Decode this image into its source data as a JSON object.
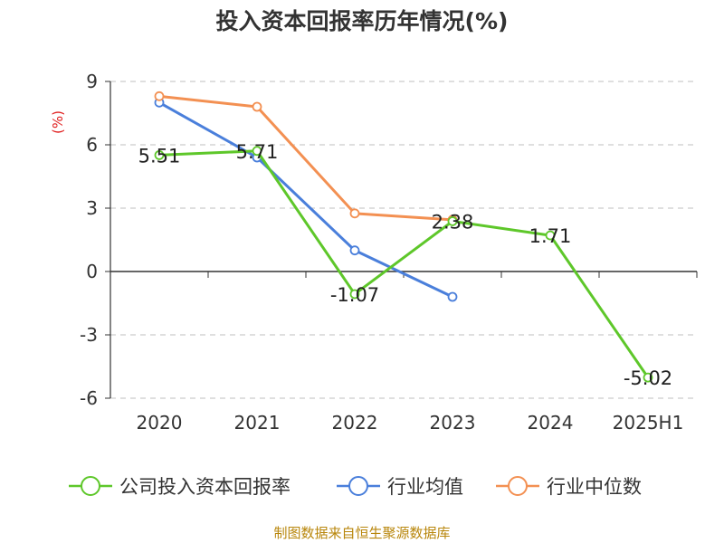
{
  "chart_data": {
    "type": "line",
    "title": "投入资本回报率历年情况(%)",
    "ylabel": "(%)",
    "categories": [
      "2020",
      "2021",
      "2022",
      "2023",
      "2024",
      "2025H1"
    ],
    "ylim": [
      -6,
      9
    ],
    "yticks": [
      9,
      6,
      3,
      0,
      -3,
      -6
    ],
    "grid": true,
    "legend_position": "bottom",
    "series": [
      {
        "name": "公司投入资本回报率",
        "color": "#5ec72a",
        "values": [
          5.51,
          5.71,
          -1.07,
          2.38,
          1.71,
          -5.02
        ],
        "labels": [
          "5.51",
          "5.71",
          "-1.07",
          "2.38",
          "1.71",
          "-5.02"
        ]
      },
      {
        "name": "行业均值",
        "color": "#4a7fdb",
        "values": [
          8.0,
          5.4,
          1.0,
          -1.2,
          null,
          null
        ]
      },
      {
        "name": "行业中位数",
        "color": "#f39052",
        "values": [
          8.3,
          7.8,
          2.75,
          2.45,
          null,
          null
        ]
      }
    ]
  },
  "source": "制图数据来自恒生聚源数据库"
}
